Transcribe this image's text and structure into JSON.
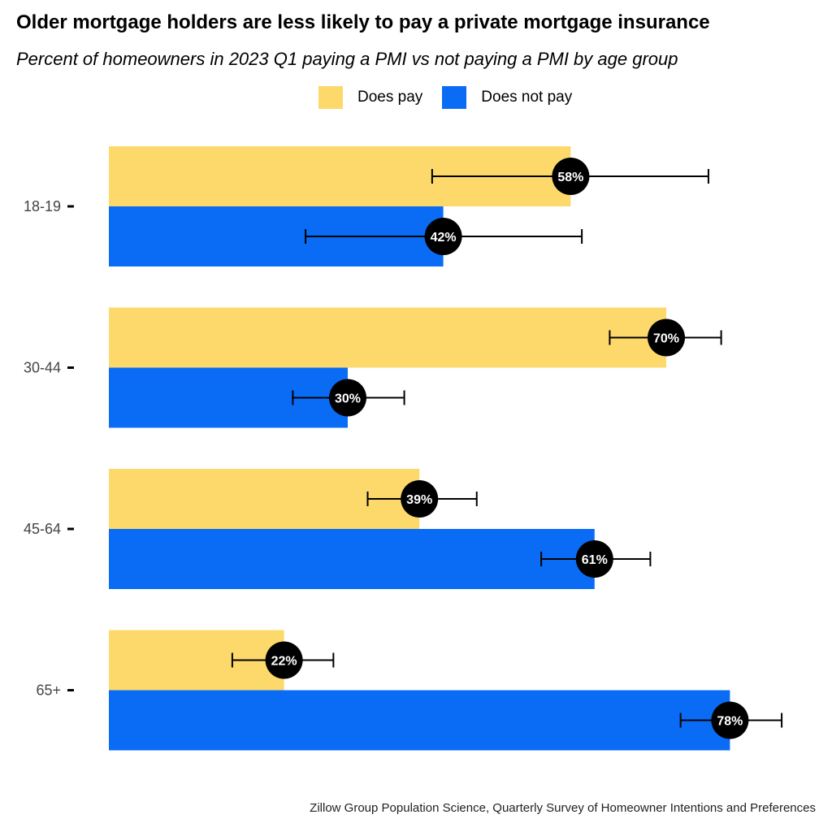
{
  "chart_data": {
    "type": "bar",
    "orientation": "horizontal",
    "title": "Older mortgage holders are less likely to pay a private mortgage insurance",
    "subtitle": "Percent of homeowners in 2023 Q1 paying a PMI vs not paying a PMI by age group",
    "categories": [
      "18-19",
      "30-44",
      "45-64",
      "65+"
    ],
    "series": [
      {
        "name": "Does pay",
        "color": "#FDD96B",
        "values": [
          58,
          70,
          39,
          22
        ],
        "labels": [
          "58%",
          "70%",
          "39%",
          "22%"
        ],
        "error_low": [
          40.6,
          62.9,
          32.5,
          15.5
        ],
        "error_high": [
          75.3,
          76.9,
          46.2,
          28.2
        ]
      },
      {
        "name": "Does not pay",
        "color": "#0A6CF5",
        "values": [
          42,
          30,
          61,
          78
        ],
        "labels": [
          "42%",
          "30%",
          "61%",
          "78%"
        ],
        "error_low": [
          24.7,
          23.1,
          54.3,
          71.8
        ],
        "error_high": [
          59.4,
          37.1,
          68.0,
          84.5
        ]
      }
    ],
    "xlim": [
      0,
      100
    ],
    "grid": false,
    "legend": "top-center",
    "source": "Zillow Group Population Science, Quarterly Survey of Homeowner Intentions and Preferences"
  }
}
